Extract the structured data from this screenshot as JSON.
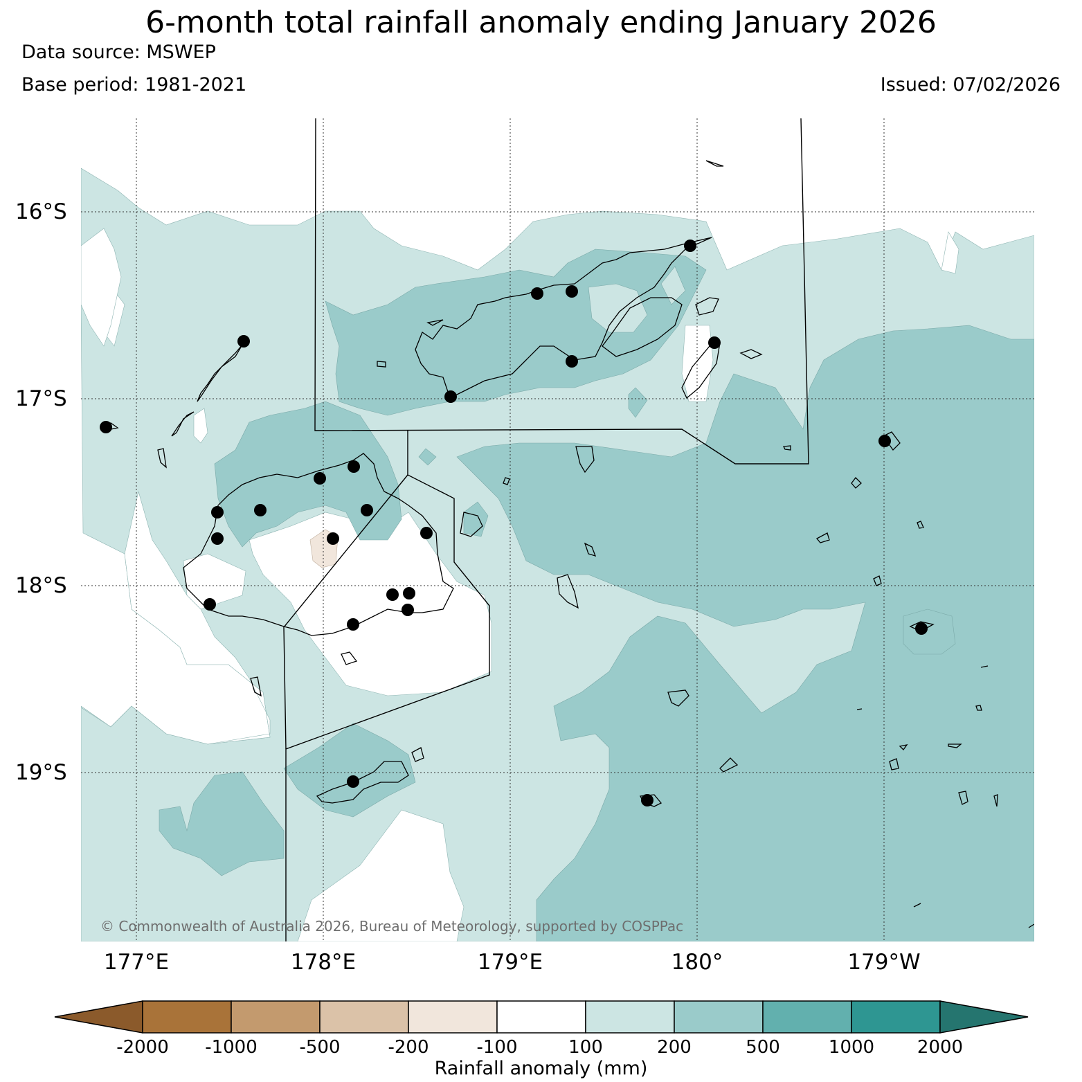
{
  "title": "6-month total rainfall anomaly ending January 2026",
  "data_source": "Data source: MSWEP",
  "base_period": "Base period: 1981-2021",
  "issued": "Issued: 07/02/2026",
  "copyright": "© Commonwealth of Australia 2026, Bureau of Meteorology, supported by COSPPac",
  "latitude_labels": [
    "16°S",
    "17°S",
    "18°S",
    "19°S"
  ],
  "longitude_labels": [
    "177°E",
    "178°E",
    "179°E",
    "180°",
    "179°W"
  ],
  "colorbar": {
    "title": "Rainfall anomaly (mm)",
    "ticks": [
      "-2000",
      "-1000",
      "-500",
      "-200",
      "-100",
      "100",
      "200",
      "500",
      "1000",
      "2000"
    ],
    "colors": [
      "#8b5a2b",
      "#a97339",
      "#c39a6e",
      "#dbc2a8",
      "#f1e6dc",
      "#ffffff",
      "#cce5e3",
      "#9acbca",
      "#62b0ae",
      "#2e9692",
      "#25756f"
    ]
  },
  "map_colors": {
    "class_100_200": "#cce5e3",
    "class_200_500": "#9acbca",
    "class_minus200_minus100": "#f1e6dc",
    "class_minus100_100": "#ffffff"
  }
}
